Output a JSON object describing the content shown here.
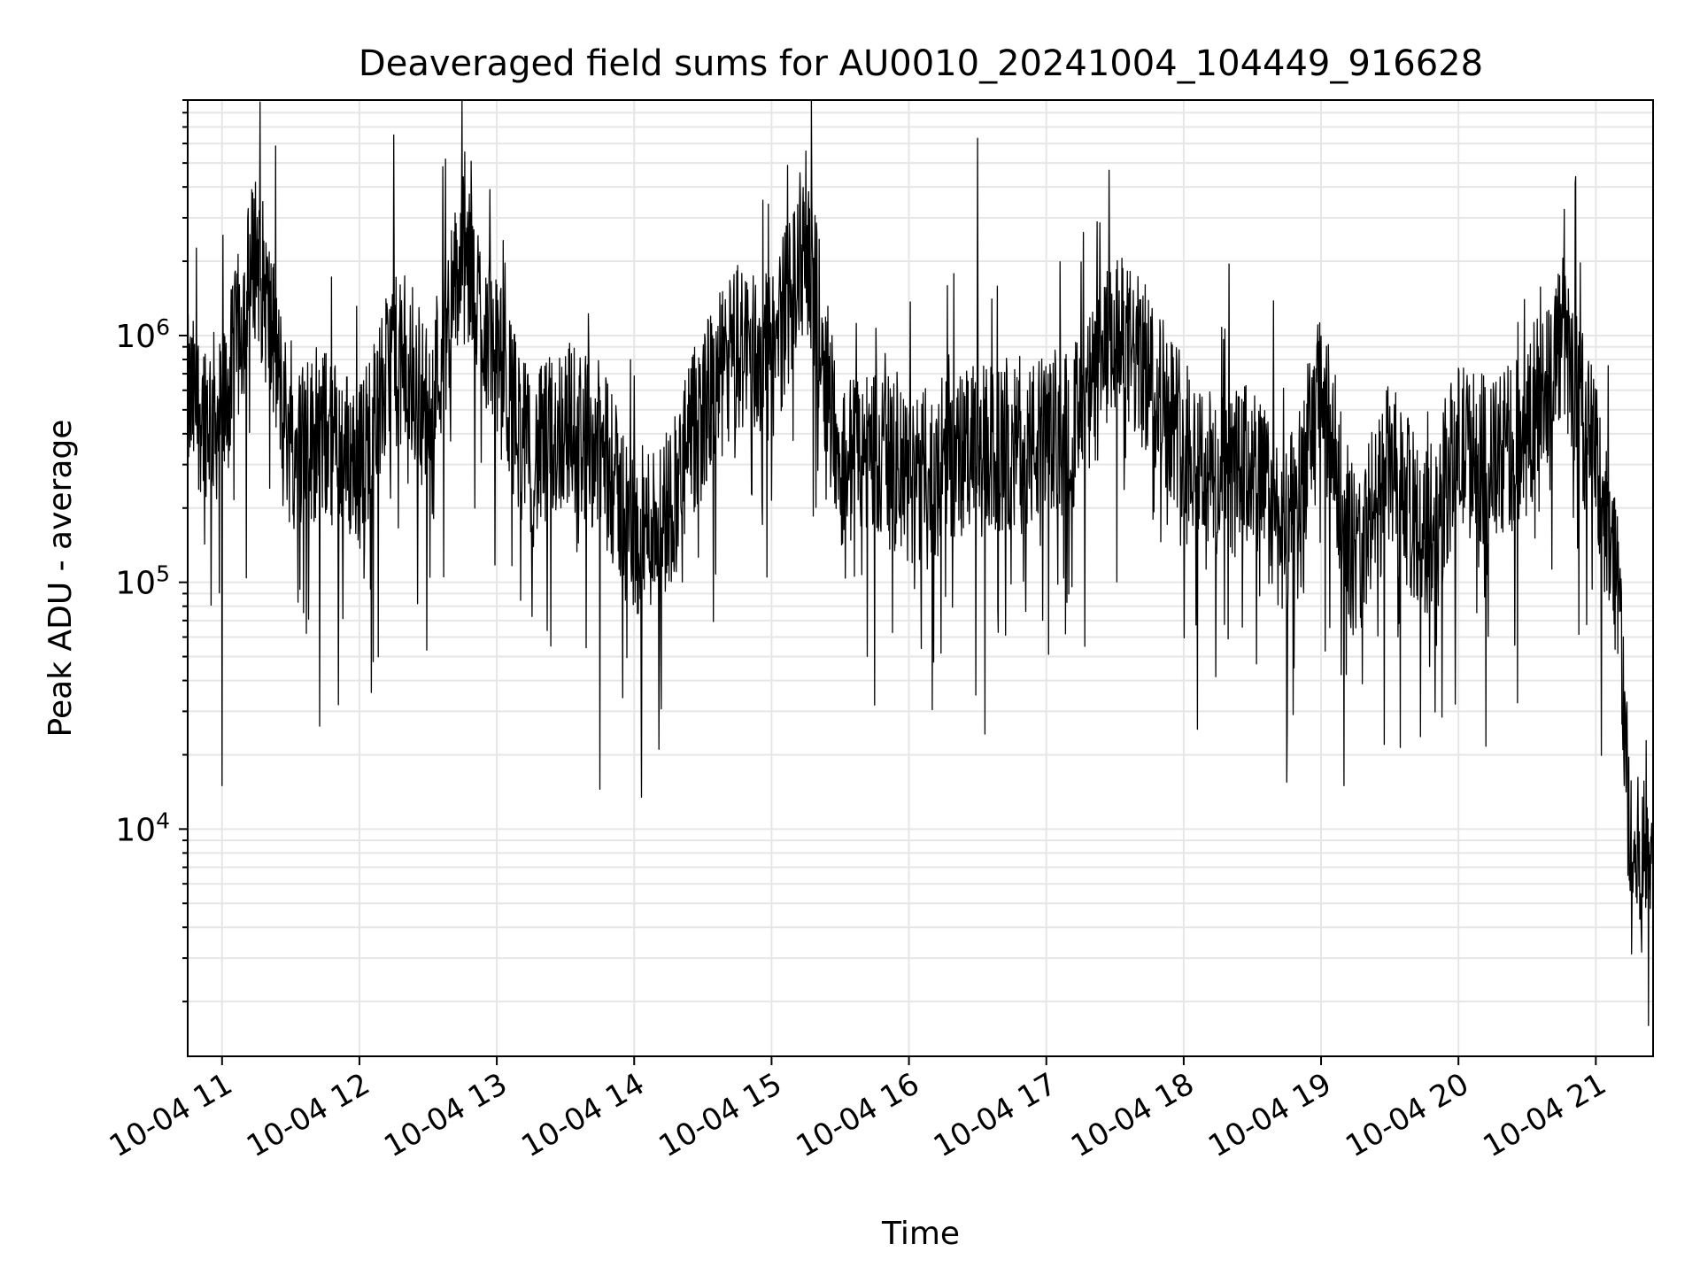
{
  "chart_data": {
    "type": "line",
    "title": "Deaveraged field sums for AU0010_20241004_104449_916628",
    "xlabel": "Time",
    "ylabel": "Peak ADU - average",
    "y_scale": "log",
    "ylim": [
      1200,
      9000000
    ],
    "xlim": [
      "2024-10-04 10:45",
      "2024-10-04 21:25"
    ],
    "x_tick_labels": [
      "10-04 11",
      "10-04 12",
      "10-04 13",
      "10-04 14",
      "10-04 15",
      "10-04 16",
      "10-04 17",
      "10-04 18",
      "10-04 19",
      "10-04 20",
      "10-04 21"
    ],
    "y_tick_labels": [
      {
        "base": "10",
        "exp": "4"
      },
      {
        "base": "10",
        "exp": "5"
      },
      {
        "base": "10",
        "exp": "6"
      }
    ],
    "grid": true,
    "line_color": "#000000",
    "series": [
      {
        "x": [
          "10:45",
          "11:00",
          "11:15",
          "11:30",
          "11:45",
          "12:00",
          "12:15",
          "12:30",
          "12:45",
          "13:00",
          "13:15",
          "13:30",
          "13:45",
          "14:00",
          "14:15",
          "14:30",
          "14:45",
          "15:00",
          "15:15",
          "15:30",
          "15:45",
          "16:00",
          "16:15",
          "16:30",
          "16:45",
          "17:00",
          "17:15",
          "17:30",
          "17:45",
          "18:00",
          "18:15",
          "18:30",
          "18:45",
          "19:00",
          "19:15",
          "19:30",
          "19:45",
          "20:00",
          "20:15",
          "20:30",
          "20:45",
          "21:00",
          "21:10",
          "21:15",
          "21:20",
          "21:25"
        ],
        "values": [
          550000,
          450000,
          2300000,
          350000,
          400000,
          300000,
          800000,
          500000,
          2100000,
          800000,
          300000,
          450000,
          350000,
          150000,
          200000,
          500000,
          900000,
          800000,
          2500000,
          300000,
          350000,
          250000,
          300000,
          350000,
          330000,
          380000,
          450000,
          1000000,
          700000,
          400000,
          250000,
          300000,
          150000,
          600000,
          120000,
          300000,
          150000,
          350000,
          300000,
          400000,
          1000000,
          300000,
          100000,
          8000,
          7000,
          10000
        ]
      }
    ],
    "spikes": [
      {
        "x": "11:00",
        "y": 15000
      },
      {
        "x": "12:15",
        "y": 6500000
      },
      {
        "x": "13:45",
        "y": 14500
      },
      {
        "x": "16:30",
        "y": 6300000
      },
      {
        "x": "18:45",
        "y": 15500
      },
      {
        "x": "19:10",
        "y": 15000
      },
      {
        "x": "21:23",
        "y": 1600
      }
    ]
  }
}
